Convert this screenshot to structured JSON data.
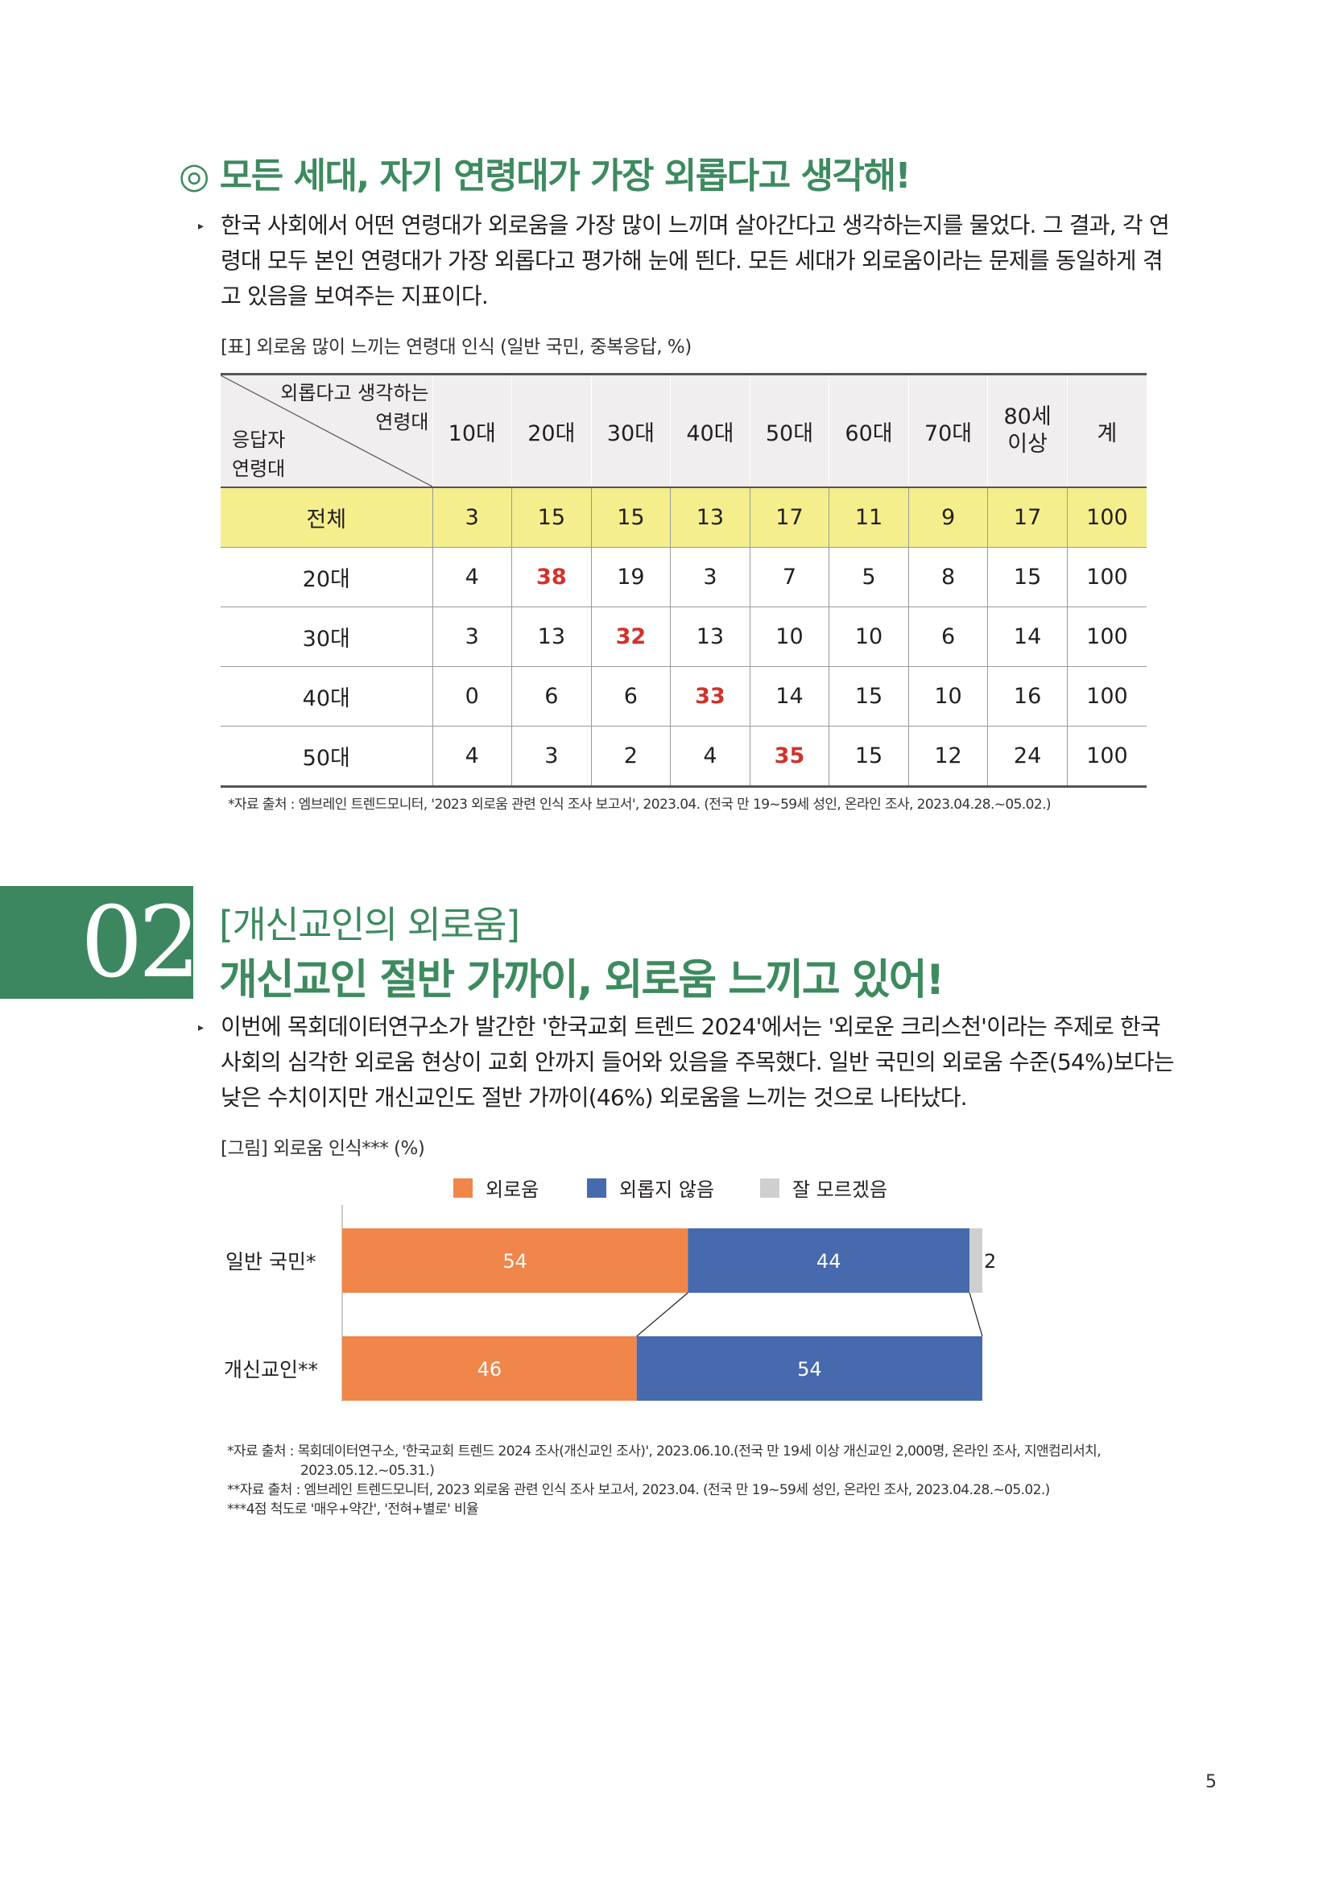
{
  "section1": {
    "title": "◎ 모든 세대, 자기 연령대가 가장 외롭다고 생각해!",
    "bullet_marker": "▸",
    "paragraph_lines": [
      "한국 사회에서 어떤 연령대가 외로움을 가장 많이 느끼며 살아간다고 생각하는지를 물었다. 그 결과, 각 연",
      "령대 모두 본인 연령대가 가장 외롭다고 평가해 눈에 띈다. 모든 세대가 외로움이라는 문제를 동일하게 겪",
      "고 있음을 보여주는 지표이다."
    ],
    "table_caption": "[표] 외로움 많이 느끼는 연령대 인식 (일반 국민, 중복응답, %)",
    "table": {
      "corner_top_lines": [
        "외롭다고 생각하는",
        "연령대"
      ],
      "corner_bottom_lines": [
        "응답자",
        "연령대"
      ],
      "columns": [
        "10대",
        "20대",
        "30대",
        "40대",
        "50대",
        "60대",
        "70대",
        "80세\n이상",
        "계"
      ],
      "column_lines": [
        [
          "10대"
        ],
        [
          "20대"
        ],
        [
          "30대"
        ],
        [
          "40대"
        ],
        [
          "50대"
        ],
        [
          "60대"
        ],
        [
          "70대"
        ],
        [
          "80세",
          "이상"
        ],
        [
          "계"
        ]
      ],
      "rows": [
        {
          "label": "전체",
          "values": [
            "3",
            "15",
            "15",
            "13",
            "17",
            "11",
            "9",
            "17",
            "100"
          ],
          "highlight_col": -1
        },
        {
          "label": "20대",
          "values": [
            "4",
            "38",
            "19",
            "3",
            "7",
            "5",
            "8",
            "15",
            "100"
          ],
          "highlight_col": 1
        },
        {
          "label": "30대",
          "values": [
            "3",
            "13",
            "32",
            "13",
            "10",
            "10",
            "6",
            "14",
            "100"
          ],
          "highlight_col": 2
        },
        {
          "label": "40대",
          "values": [
            "0",
            "6",
            "6",
            "33",
            "14",
            "15",
            "10",
            "16",
            "100"
          ],
          "highlight_col": 3
        },
        {
          "label": "50대",
          "values": [
            "4",
            "3",
            "2",
            "4",
            "35",
            "15",
            "12",
            "24",
            "100"
          ],
          "highlight_col": 4
        }
      ]
    },
    "source": "*자료 출처 : 엠브레인 트렌드모니터, '2023 외로움 관련 인식 조사 보고서', 2023.04. (전국 만 19~59세 성인, 온라인 조사, 2023.04.28.~05.02.)"
  },
  "section2": {
    "number": "02",
    "subtitle": "[개신교인의 외로움]",
    "title": "개신교인 절반 가까이, 외로움 느끼고 있어!",
    "bullet_marker": "▸",
    "paragraph_lines": [
      "이번에 목회데이터연구소가 발간한 '한국교회 트렌드 2024'에서는 '외로운 크리스천'이라는 주제로 한국",
      "사회의 심각한 외로움 현상이 교회 안까지 들어와 있음을 주목했다. 일반 국민의 외로움 수준(54%)보다는",
      "낮은 수치이지만 개신교인도 절반 가까이(46%) 외로움을 느끼는 것으로 나타났다."
    ],
    "chart_caption": "[그림] 외로움 인식*** (%)",
    "sources": [
      "*자료 출처 : 목회데이터연구소, '한국교회 트렌드 2024 조사(개신교인 조사)', 2023.06.10.(전국 만 19세 이상 개신교인 2,000명, 온라인 조사, 지앤컴리서치,",
      "2023.05.12.~05.31.)",
      "**자료 출처 : 엠브레인 트렌드모니터, 2023 외로움 관련 인식 조사 보고서, 2023.04. (전국 만 19~59세 성인, 온라인 조사, 2023.04.28.~05.02.)",
      "***4점 척도로 '매우+약간', '전혀+별로' 비율"
    ]
  },
  "chart_data": {
    "type": "bar",
    "orientation": "horizontal",
    "stacked": true,
    "normalized": true,
    "categories": [
      "일반 국민*",
      "개신교인**"
    ],
    "series": [
      {
        "name": "외로움",
        "values": [
          54,
          46
        ],
        "color": "#f0864a"
      },
      {
        "name": "외롭지 않음",
        "values": [
          44,
          54
        ],
        "color": "#4769ad"
      },
      {
        "name": "잘 모르겠음",
        "values": [
          2,
          0
        ],
        "color": "#cfcfcf"
      }
    ],
    "data_labels": [
      [
        "54",
        "44",
        "2"
      ],
      [
        "46",
        "54",
        ""
      ]
    ],
    "xlim": [
      0,
      100
    ],
    "legend_position": "top",
    "grid": false
  },
  "page_number": "5"
}
